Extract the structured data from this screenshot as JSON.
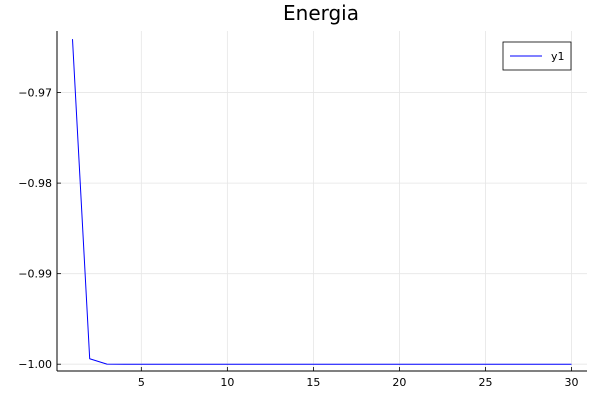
{
  "chart_data": {
    "type": "line",
    "title": "Energia",
    "xlabel": "",
    "ylabel": "",
    "xlim": [
      0.1,
      30.9
    ],
    "ylim": [
      -1.00075,
      -0.9632
    ],
    "x_ticks": [
      5,
      10,
      15,
      20,
      25,
      30
    ],
    "x_tick_labels": [
      "5",
      "10",
      "15",
      "20",
      "25",
      "30"
    ],
    "y_ticks": [
      -0.97,
      -0.98,
      -0.99,
      -1.0
    ],
    "y_tick_labels": [
      "−0.97",
      "−0.98",
      "−0.99",
      "−1.00"
    ],
    "grid": true,
    "legend": {
      "position": "top-right",
      "entries": [
        "y1"
      ]
    },
    "series": [
      {
        "name": "y1",
        "color": "#0000ff",
        "x": [
          1,
          2,
          3,
          4,
          5,
          6,
          7,
          8,
          9,
          10,
          11,
          12,
          13,
          14,
          15,
          16,
          17,
          18,
          19,
          20,
          21,
          22,
          23,
          24,
          25,
          26,
          27,
          28,
          29,
          30
        ],
        "y": [
          -0.9641,
          -0.9994,
          -0.99999,
          -1.0,
          -1.0,
          -1.0,
          -1.0,
          -1.0,
          -1.0,
          -1.0,
          -1.0,
          -1.0,
          -1.0,
          -1.0,
          -1.0,
          -1.0,
          -1.0,
          -1.0,
          -1.0,
          -1.0,
          -1.0,
          -1.0,
          -1.0,
          -1.0,
          -1.0,
          -1.0,
          -1.0,
          -1.0,
          -1.0,
          -1.0
        ]
      }
    ]
  }
}
